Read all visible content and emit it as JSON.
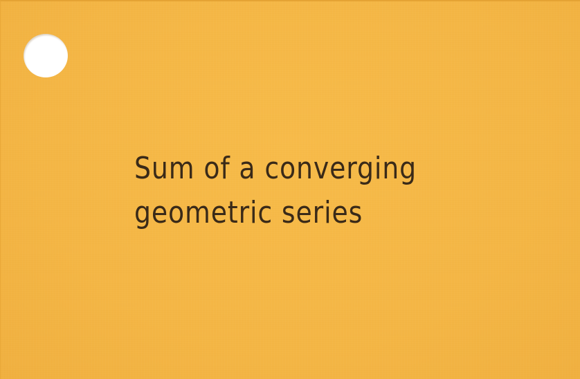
{
  "card": {
    "lines": [
      "Sum of a converging",
      "geometric series"
    ]
  },
  "colors": {
    "card": "#f5b846",
    "ink": "#3a2a18",
    "hole": "#ffffff"
  }
}
